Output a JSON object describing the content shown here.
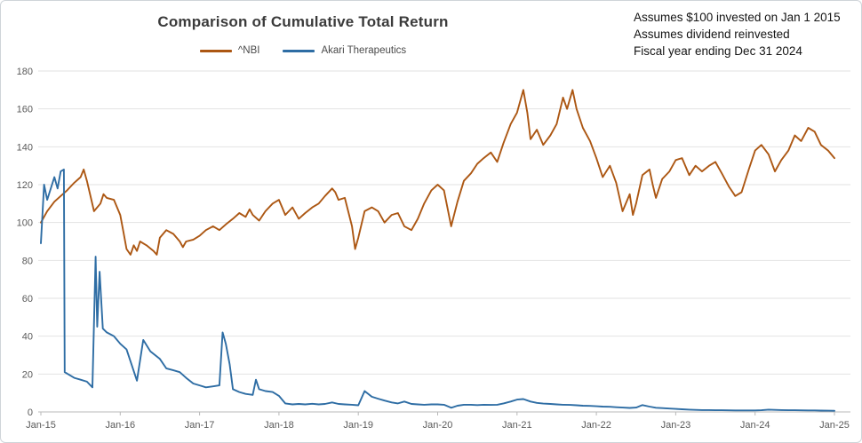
{
  "title": "Comparison of Cumulative Total Return",
  "annotation": {
    "lines": [
      "Assumes $100 invested on Jan 1 2015",
      "Assumes dividend reinvested",
      "Fiscal year ending Dec 31 2024"
    ]
  },
  "legend": {
    "items": [
      {
        "label": "^NBI",
        "color": "#AC5713"
      },
      {
        "label": "Akari Therapeutics",
        "color": "#2E6DA4"
      }
    ]
  },
  "colors": {
    "nbi_line": "#AC5713",
    "akari_line": "#2E6DA4",
    "gridline": "#e2e2e2",
    "axis_line": "#b8b8b8",
    "tick_label": "#595959",
    "title_text": "#3b3b3b"
  },
  "chart_data": {
    "type": "line",
    "title": "Comparison of Cumulative Total Return",
    "xlabel": "",
    "ylabel": "",
    "x_unit": "years since Jan 2015",
    "xlim": [
      0,
      10
    ],
    "ylim": [
      0,
      180
    ],
    "y_ticks": [
      0,
      20,
      40,
      60,
      80,
      100,
      120,
      140,
      160,
      180
    ],
    "x_ticks": [
      0,
      1,
      2,
      3,
      4,
      5,
      6,
      7,
      8,
      9,
      10
    ],
    "x_tick_labels": [
      "Jan-15",
      "Jan-16",
      "Jan-17",
      "Jan-18",
      "Jan-19",
      "Jan-20",
      "Jan-21",
      "Jan-22",
      "Jan-23",
      "Jan-24",
      "Jan-25"
    ],
    "grid": true,
    "legend_position": "top",
    "series": [
      {
        "name": "^NBI",
        "color": "#AC5713",
        "points": [
          [
            0,
            100
          ],
          [
            0.08,
            106
          ],
          [
            0.17,
            111
          ],
          [
            0.25,
            114
          ],
          [
            0.33,
            117
          ],
          [
            0.42,
            121
          ],
          [
            0.5,
            124
          ],
          [
            0.54,
            128
          ],
          [
            0.58,
            122
          ],
          [
            0.63,
            113
          ],
          [
            0.67,
            106
          ],
          [
            0.75,
            110
          ],
          [
            0.79,
            115
          ],
          [
            0.83,
            113
          ],
          [
            0.92,
            112
          ],
          [
            1,
            104
          ],
          [
            1.04,
            95
          ],
          [
            1.08,
            86
          ],
          [
            1.13,
            83
          ],
          [
            1.17,
            88
          ],
          [
            1.21,
            85
          ],
          [
            1.25,
            90
          ],
          [
            1.33,
            88
          ],
          [
            1.42,
            85
          ],
          [
            1.46,
            83
          ],
          [
            1.5,
            92
          ],
          [
            1.58,
            96
          ],
          [
            1.67,
            94
          ],
          [
            1.75,
            90
          ],
          [
            1.79,
            87
          ],
          [
            1.83,
            90
          ],
          [
            1.92,
            91
          ],
          [
            2,
            93
          ],
          [
            2.08,
            96
          ],
          [
            2.17,
            98
          ],
          [
            2.25,
            96
          ],
          [
            2.33,
            99
          ],
          [
            2.42,
            102
          ],
          [
            2.5,
            105
          ],
          [
            2.58,
            103
          ],
          [
            2.63,
            107
          ],
          [
            2.67,
            104
          ],
          [
            2.75,
            101
          ],
          [
            2.83,
            106
          ],
          [
            2.92,
            110
          ],
          [
            3,
            112
          ],
          [
            3.04,
            108
          ],
          [
            3.08,
            104
          ],
          [
            3.17,
            108
          ],
          [
            3.25,
            102
          ],
          [
            3.33,
            105
          ],
          [
            3.42,
            108
          ],
          [
            3.5,
            110
          ],
          [
            3.58,
            114
          ],
          [
            3.67,
            118
          ],
          [
            3.71,
            116
          ],
          [
            3.75,
            112
          ],
          [
            3.83,
            113
          ],
          [
            3.92,
            98
          ],
          [
            3.96,
            86
          ],
          [
            4,
            92
          ],
          [
            4.08,
            106
          ],
          [
            4.17,
            108
          ],
          [
            4.25,
            106
          ],
          [
            4.33,
            100
          ],
          [
            4.42,
            104
          ],
          [
            4.5,
            105
          ],
          [
            4.58,
            98
          ],
          [
            4.67,
            96
          ],
          [
            4.75,
            102
          ],
          [
            4.83,
            110
          ],
          [
            4.92,
            117
          ],
          [
            5,
            120
          ],
          [
            5.08,
            117
          ],
          [
            5.17,
            98
          ],
          [
            5.25,
            111
          ],
          [
            5.33,
            122
          ],
          [
            5.42,
            126
          ],
          [
            5.5,
            131
          ],
          [
            5.58,
            134
          ],
          [
            5.67,
            137
          ],
          [
            5.75,
            132
          ],
          [
            5.83,
            142
          ],
          [
            5.92,
            152
          ],
          [
            6,
            158
          ],
          [
            6.08,
            170
          ],
          [
            6.13,
            158
          ],
          [
            6.17,
            144
          ],
          [
            6.25,
            149
          ],
          [
            6.33,
            141
          ],
          [
            6.42,
            146
          ],
          [
            6.5,
            152
          ],
          [
            6.58,
            166
          ],
          [
            6.63,
            160
          ],
          [
            6.7,
            170
          ],
          [
            6.75,
            160
          ],
          [
            6.83,
            150
          ],
          [
            6.92,
            143
          ],
          [
            7,
            134
          ],
          [
            7.08,
            124
          ],
          [
            7.17,
            130
          ],
          [
            7.25,
            121
          ],
          [
            7.33,
            106
          ],
          [
            7.42,
            115
          ],
          [
            7.46,
            104
          ],
          [
            7.5,
            110
          ],
          [
            7.58,
            125
          ],
          [
            7.67,
            128
          ],
          [
            7.71,
            120
          ],
          [
            7.75,
            113
          ],
          [
            7.83,
            123
          ],
          [
            7.92,
            127
          ],
          [
            8,
            133
          ],
          [
            8.08,
            134
          ],
          [
            8.17,
            125
          ],
          [
            8.25,
            130
          ],
          [
            8.33,
            127
          ],
          [
            8.42,
            130
          ],
          [
            8.5,
            132
          ],
          [
            8.58,
            126
          ],
          [
            8.67,
            119
          ],
          [
            8.75,
            114
          ],
          [
            8.83,
            116
          ],
          [
            8.92,
            128
          ],
          [
            9,
            138
          ],
          [
            9.08,
            141
          ],
          [
            9.17,
            136
          ],
          [
            9.25,
            127
          ],
          [
            9.33,
            133
          ],
          [
            9.42,
            138
          ],
          [
            9.5,
            146
          ],
          [
            9.58,
            143
          ],
          [
            9.67,
            150
          ],
          [
            9.75,
            148
          ],
          [
            9.83,
            141
          ],
          [
            9.92,
            138
          ],
          [
            10,
            134
          ]
        ]
      },
      {
        "name": "Akari Therapeutics",
        "color": "#2E6DA4",
        "points": [
          [
            0,
            89
          ],
          [
            0.04,
            120
          ],
          [
            0.08,
            112
          ],
          [
            0.17,
            124
          ],
          [
            0.21,
            118
          ],
          [
            0.25,
            127
          ],
          [
            0.29,
            128
          ],
          [
            0.3,
            21
          ],
          [
            0.42,
            18
          ],
          [
            0.5,
            17
          ],
          [
            0.58,
            16
          ],
          [
            0.65,
            13
          ],
          [
            0.69,
            82
          ],
          [
            0.71,
            45
          ],
          [
            0.74,
            74
          ],
          [
            0.78,
            44
          ],
          [
            0.83,
            42
          ],
          [
            0.92,
            40
          ],
          [
            1,
            36
          ],
          [
            1.08,
            33
          ],
          [
            1.21,
            16.5
          ],
          [
            1.29,
            38
          ],
          [
            1.38,
            32
          ],
          [
            1.5,
            28
          ],
          [
            1.58,
            23
          ],
          [
            1.67,
            22
          ],
          [
            1.75,
            21
          ],
          [
            1.83,
            18
          ],
          [
            1.92,
            15
          ],
          [
            2,
            14
          ],
          [
            2.08,
            13
          ],
          [
            2.17,
            13.5
          ],
          [
            2.25,
            14
          ],
          [
            2.29,
            42
          ],
          [
            2.33,
            36
          ],
          [
            2.38,
            25
          ],
          [
            2.42,
            12
          ],
          [
            2.5,
            10.5
          ],
          [
            2.58,
            9.5
          ],
          [
            2.67,
            9
          ],
          [
            2.71,
            17
          ],
          [
            2.75,
            12
          ],
          [
            2.83,
            11
          ],
          [
            2.92,
            10.5
          ],
          [
            3,
            8.5
          ],
          [
            3.08,
            4.5
          ],
          [
            3.17,
            4
          ],
          [
            3.25,
            4.2
          ],
          [
            3.33,
            4
          ],
          [
            3.42,
            4.3
          ],
          [
            3.5,
            4
          ],
          [
            3.58,
            4.2
          ],
          [
            3.67,
            5
          ],
          [
            3.75,
            4.2
          ],
          [
            3.83,
            4
          ],
          [
            3.92,
            3.8
          ],
          [
            4,
            3.5
          ],
          [
            4.08,
            11
          ],
          [
            4.17,
            8
          ],
          [
            4.25,
            7
          ],
          [
            4.33,
            6
          ],
          [
            4.42,
            5
          ],
          [
            4.5,
            4.5
          ],
          [
            4.58,
            5.5
          ],
          [
            4.67,
            4.2
          ],
          [
            4.75,
            4
          ],
          [
            4.83,
            3.8
          ],
          [
            4.92,
            4
          ],
          [
            5,
            4
          ],
          [
            5.08,
            3.8
          ],
          [
            5.17,
            2.2
          ],
          [
            5.25,
            3.3
          ],
          [
            5.33,
            3.8
          ],
          [
            5.42,
            3.8
          ],
          [
            5.5,
            3.6
          ],
          [
            5.58,
            3.8
          ],
          [
            5.67,
            3.7
          ],
          [
            5.75,
            3.8
          ],
          [
            5.83,
            4.5
          ],
          [
            5.92,
            5.5
          ],
          [
            6,
            6.5
          ],
          [
            6.08,
            6.8
          ],
          [
            6.17,
            5.5
          ],
          [
            6.25,
            4.8
          ],
          [
            6.33,
            4.4
          ],
          [
            6.42,
            4.2
          ],
          [
            6.5,
            4
          ],
          [
            6.58,
            3.8
          ],
          [
            6.67,
            3.7
          ],
          [
            6.75,
            3.5
          ],
          [
            6.83,
            3.3
          ],
          [
            6.92,
            3.2
          ],
          [
            7,
            3
          ],
          [
            7.08,
            2.8
          ],
          [
            7.17,
            2.7
          ],
          [
            7.25,
            2.5
          ],
          [
            7.33,
            2.3
          ],
          [
            7.42,
            2.1
          ],
          [
            7.5,
            2.3
          ],
          [
            7.58,
            3.6
          ],
          [
            7.67,
            2.8
          ],
          [
            7.75,
            2.2
          ],
          [
            7.83,
            2
          ],
          [
            7.92,
            1.8
          ],
          [
            8,
            1.6
          ],
          [
            8.08,
            1.4
          ],
          [
            8.17,
            1.2
          ],
          [
            8.25,
            1.1
          ],
          [
            8.33,
            1
          ],
          [
            8.42,
            1
          ],
          [
            8.5,
            0.9
          ],
          [
            8.58,
            0.9
          ],
          [
            8.67,
            0.85
          ],
          [
            8.75,
            0.8
          ],
          [
            8.83,
            0.8
          ],
          [
            8.92,
            0.8
          ],
          [
            9,
            0.8
          ],
          [
            9.08,
            0.9
          ],
          [
            9.17,
            1.2
          ],
          [
            9.25,
            1.1
          ],
          [
            9.33,
            1
          ],
          [
            9.42,
            0.9
          ],
          [
            9.5,
            0.9
          ],
          [
            9.58,
            0.85
          ],
          [
            9.67,
            0.8
          ],
          [
            9.75,
            0.8
          ],
          [
            9.83,
            0.7
          ],
          [
            9.92,
            0.65
          ],
          [
            10,
            0.6
          ]
        ]
      }
    ]
  }
}
